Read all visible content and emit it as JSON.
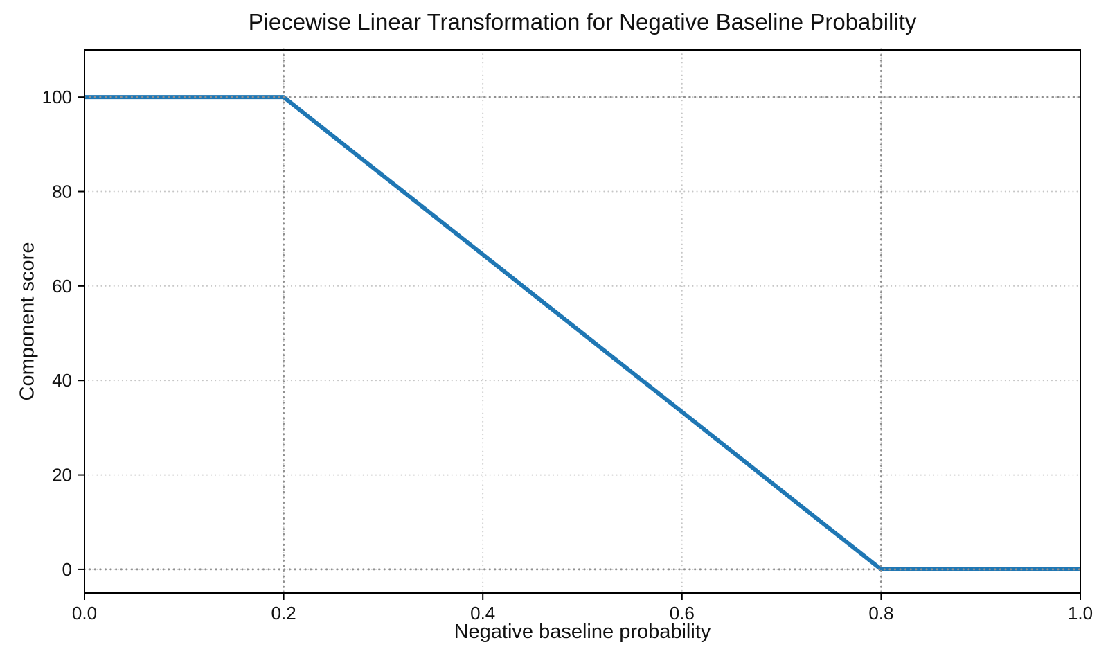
{
  "page": {
    "background_color": "#ffffff",
    "text_color": "#111111"
  },
  "chart_data": {
    "type": "line",
    "title": "Piecewise Linear Transformation for Negative Baseline Probability",
    "xlabel": "Negative baseline probability",
    "ylabel": "Component score",
    "xlim": [
      0.0,
      1.0
    ],
    "ylim": [
      -5,
      110
    ],
    "xticks": {
      "values": [
        0.0,
        0.2,
        0.4,
        0.6,
        0.8,
        1.0
      ],
      "labels": [
        "0.0",
        "0.2",
        "0.4",
        "0.6",
        "0.8",
        "1.0"
      ]
    },
    "yticks": {
      "values": [
        0,
        20,
        40,
        60,
        80,
        100
      ],
      "labels": [
        "0",
        "20",
        "40",
        "60",
        "80",
        "100"
      ]
    },
    "grid": {
      "on": true,
      "style": "dotted",
      "color": "#c6c6c6",
      "line_width": 2
    },
    "reference_lines": {
      "style": "dotted",
      "color": "#8f8f8f",
      "line_width": 3,
      "vertical_x": [
        0.2,
        0.8
      ],
      "horizontal_y": [
        100,
        0
      ]
    },
    "series": [
      {
        "name": "component-score-curve",
        "color": "#1f77b4",
        "line_width": 6,
        "points": [
          [
            0.0,
            100
          ],
          [
            0.2,
            100
          ],
          [
            0.8,
            0
          ],
          [
            1.0,
            0
          ]
        ]
      }
    ],
    "legend": null,
    "axis": {
      "frame_color": "#000000",
      "tick_color": "#000000",
      "tick_label_color": "#111111",
      "tick_font_size": 26
    }
  }
}
